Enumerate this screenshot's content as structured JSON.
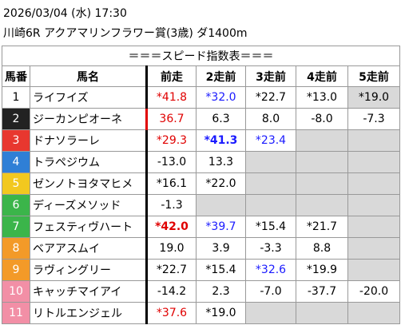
{
  "header": {
    "date": "2026/03/04 (水) 17:30",
    "race": "川崎6R アクアマリンフラワー賞(3歳) ダ1400m"
  },
  "table": {
    "title": "＝＝＝スピード指数表＝＝＝",
    "columns": [
      "馬番",
      "馬名",
      "前走",
      "2走前",
      "3走前",
      "4走前",
      "5走前"
    ],
    "empty_color": "#d9d9d9",
    "rows": [
      {
        "number": "1",
        "frame_color": "#ffffff",
        "number_color": "#000000",
        "name": "ライフイズ",
        "cells": [
          {
            "text": "*41.8",
            "color": "#e00000"
          },
          {
            "text": "*32.0",
            "color": "#1a1aff"
          },
          {
            "text": "*22.7"
          },
          {
            "text": "*13.0"
          },
          {
            "text": "*19.0",
            "shade": "#d9d9d9"
          }
        ]
      },
      {
        "number": "2",
        "frame_color": "#222222",
        "number_color": "#ffffff",
        "name": "ジーカンピオーネ",
        "marker": "#e00000",
        "cells": [
          {
            "text": "36.7",
            "color": "#e00000"
          },
          {
            "text": "6.3"
          },
          {
            "text": "8.0"
          },
          {
            "text": "-8.0"
          },
          {
            "text": "-7.3"
          }
        ]
      },
      {
        "number": "3",
        "frame_color": "#e8372f",
        "number_color": "#ffffff",
        "name": "ドナソラーレ",
        "cells": [
          {
            "text": "*29.3",
            "color": "#e00000"
          },
          {
            "text": "*41.3",
            "color": "#1a1aff",
            "bold": true
          },
          {
            "text": "*23.4",
            "color": "#1a1aff"
          },
          null,
          null
        ]
      },
      {
        "number": "4",
        "frame_color": "#2f7fd6",
        "number_color": "#ffffff",
        "name": "トラペジウム",
        "cells": [
          {
            "text": "-13.0"
          },
          {
            "text": "13.3"
          },
          null,
          null,
          null
        ]
      },
      {
        "number": "5",
        "frame_color": "#f2c81f",
        "number_color": "#ffffff",
        "name": "ゼンノトヨタマヒメ",
        "cells": [
          {
            "text": "*16.1"
          },
          {
            "text": "*22.0"
          },
          null,
          null,
          null
        ]
      },
      {
        "number": "6",
        "frame_color": "#3bb54a",
        "number_color": "#ffffff",
        "name": "ディーズメソッド",
        "cells": [
          {
            "text": "-1.3"
          },
          null,
          null,
          null,
          null
        ]
      },
      {
        "number": "7",
        "frame_color": "#3bb54a",
        "number_color": "#ffffff",
        "name": "フェスティヴハート",
        "cells": [
          {
            "text": "*42.0",
            "color": "#e00000",
            "bold": true
          },
          {
            "text": "*39.7",
            "color": "#1a1aff"
          },
          {
            "text": "*15.4"
          },
          {
            "text": "*21.7"
          },
          null
        ]
      },
      {
        "number": "8",
        "frame_color": "#f39a28",
        "number_color": "#ffffff",
        "name": "ベアアスムイ",
        "cells": [
          {
            "text": "19.0"
          },
          {
            "text": "3.9"
          },
          {
            "text": "-3.3"
          },
          {
            "text": "8.8"
          },
          null
        ]
      },
      {
        "number": "9",
        "frame_color": "#f39a28",
        "number_color": "#ffffff",
        "name": "ラヴィングリー",
        "cells": [
          {
            "text": "*22.7"
          },
          {
            "text": "*15.4"
          },
          {
            "text": "*32.6",
            "color": "#1a1aff"
          },
          {
            "text": "*19.9"
          },
          null
        ]
      },
      {
        "number": "10",
        "frame_color": "#f28fa6",
        "number_color": "#ffffff",
        "name": "キャッチマイアイ",
        "cells": [
          {
            "text": "-14.2"
          },
          {
            "text": "2.3"
          },
          {
            "text": "-7.0"
          },
          {
            "text": "-37.7"
          },
          {
            "text": "-20.0"
          }
        ]
      },
      {
        "number": "11",
        "frame_color": "#f28fa6",
        "number_color": "#ffffff",
        "name": "リトルエンジェル",
        "cells": [
          {
            "text": "*37.6",
            "color": "#e00000"
          },
          {
            "text": "*19.0"
          },
          null,
          null,
          null
        ]
      }
    ]
  }
}
